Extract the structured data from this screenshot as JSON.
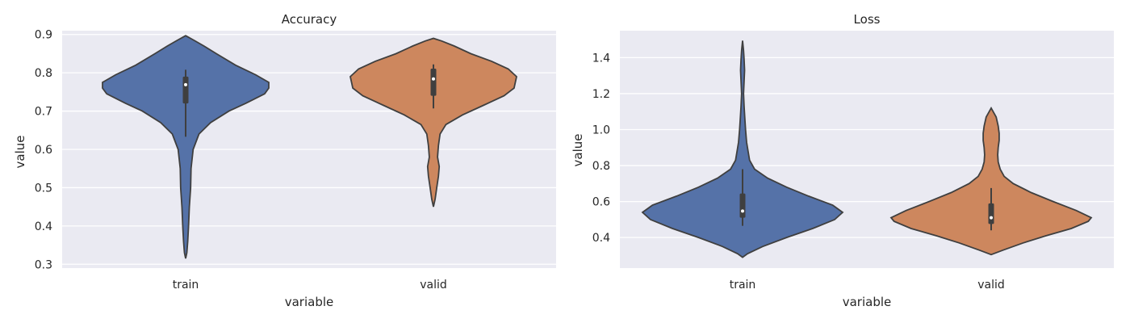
{
  "colors": {
    "train": "#5572a8",
    "valid": "#cd875e",
    "background": "#eaeaf2",
    "edge": "#3f3f3f"
  },
  "chart_data": [
    {
      "type": "violin",
      "title": "Accuracy",
      "xlabel": "variable",
      "ylabel": "value",
      "categories": [
        "train",
        "valid"
      ],
      "ylim": [
        0.29,
        0.91
      ],
      "yticks": [
        "0.3",
        "0.4",
        "0.5",
        "0.6",
        "0.7",
        "0.8",
        "0.9"
      ],
      "grid": true,
      "violins": [
        {
          "name": "train",
          "whisker": [
            0.633,
            0.808
          ],
          "q1": 0.72,
          "median": 0.769,
          "q3": 0.79,
          "density": [
            [
              0.315,
              0.0
            ],
            [
              0.33,
              0.015
            ],
            [
              0.36,
              0.025
            ],
            [
              0.4,
              0.035
            ],
            [
              0.45,
              0.045
            ],
            [
              0.5,
              0.06
            ],
            [
              0.55,
              0.065
            ],
            [
              0.6,
              0.09
            ],
            [
              0.64,
              0.16
            ],
            [
              0.67,
              0.3
            ],
            [
              0.7,
              0.52
            ],
            [
              0.72,
              0.72
            ],
            [
              0.745,
              0.95
            ],
            [
              0.76,
              1.0
            ],
            [
              0.775,
              1.0
            ],
            [
              0.795,
              0.84
            ],
            [
              0.82,
              0.6
            ],
            [
              0.85,
              0.37
            ],
            [
              0.87,
              0.22
            ],
            [
              0.885,
              0.1
            ],
            [
              0.897,
              0.0
            ]
          ]
        },
        {
          "name": "valid",
          "whisker": [
            0.707,
            0.822
          ],
          "q1": 0.74,
          "median": 0.784,
          "q3": 0.811,
          "density": [
            [
              0.45,
              0.0
            ],
            [
              0.47,
              0.02
            ],
            [
              0.5,
              0.04
            ],
            [
              0.53,
              0.06
            ],
            [
              0.555,
              0.07
            ],
            [
              0.58,
              0.05
            ],
            [
              0.61,
              0.06
            ],
            [
              0.64,
              0.08
            ],
            [
              0.665,
              0.15
            ],
            [
              0.69,
              0.35
            ],
            [
              0.715,
              0.6
            ],
            [
              0.74,
              0.85
            ],
            [
              0.76,
              0.97
            ],
            [
              0.79,
              1.0
            ],
            [
              0.81,
              0.9
            ],
            [
              0.83,
              0.7
            ],
            [
              0.85,
              0.45
            ],
            [
              0.87,
              0.25
            ],
            [
              0.883,
              0.1
            ],
            [
              0.89,
              0.0
            ]
          ]
        }
      ]
    },
    {
      "type": "violin",
      "title": "Loss",
      "xlabel": "variable",
      "ylabel": "value",
      "categories": [
        "train",
        "valid"
      ],
      "ylim": [
        0.23,
        1.55
      ],
      "yticks": [
        "0.4",
        "0.6",
        "0.8",
        "1.0",
        "1.2",
        "1.4"
      ],
      "grid": true,
      "violins": [
        {
          "name": "train",
          "whisker": [
            0.465,
            0.78
          ],
          "q1": 0.51,
          "median": 0.547,
          "q3": 0.645,
          "density": [
            [
              0.29,
              0.0
            ],
            [
              0.31,
              0.05
            ],
            [
              0.35,
              0.2
            ],
            [
              0.4,
              0.44
            ],
            [
              0.45,
              0.7
            ],
            [
              0.5,
              0.92
            ],
            [
              0.54,
              1.0
            ],
            [
              0.58,
              0.9
            ],
            [
              0.63,
              0.66
            ],
            [
              0.68,
              0.44
            ],
            [
              0.73,
              0.25
            ],
            [
              0.78,
              0.12
            ],
            [
              0.83,
              0.07
            ],
            [
              0.88,
              0.055
            ],
            [
              0.93,
              0.04
            ],
            [
              1.0,
              0.03
            ],
            [
              1.07,
              0.022
            ],
            [
              1.13,
              0.015
            ],
            [
              1.2,
              0.01
            ],
            [
              1.27,
              0.015
            ],
            [
              1.33,
              0.02
            ],
            [
              1.39,
              0.015
            ],
            [
              1.44,
              0.01
            ],
            [
              1.495,
              0.0
            ]
          ]
        },
        {
          "name": "valid",
          "whisker": [
            0.44,
            0.675
          ],
          "q1": 0.475,
          "median": 0.51,
          "q3": 0.59,
          "density": [
            [
              0.305,
              0.0
            ],
            [
              0.33,
              0.12
            ],
            [
              0.37,
              0.32
            ],
            [
              0.41,
              0.55
            ],
            [
              0.45,
              0.8
            ],
            [
              0.49,
              0.97
            ],
            [
              0.51,
              1.0
            ],
            [
              0.55,
              0.85
            ],
            [
              0.6,
              0.62
            ],
            [
              0.65,
              0.4
            ],
            [
              0.7,
              0.22
            ],
            [
              0.74,
              0.13
            ],
            [
              0.78,
              0.09
            ],
            [
              0.82,
              0.07
            ],
            [
              0.86,
              0.065
            ],
            [
              0.9,
              0.07
            ],
            [
              0.94,
              0.08
            ],
            [
              0.98,
              0.08
            ],
            [
              1.02,
              0.07
            ],
            [
              1.07,
              0.05
            ],
            [
              1.12,
              0.0
            ]
          ]
        }
      ]
    }
  ]
}
